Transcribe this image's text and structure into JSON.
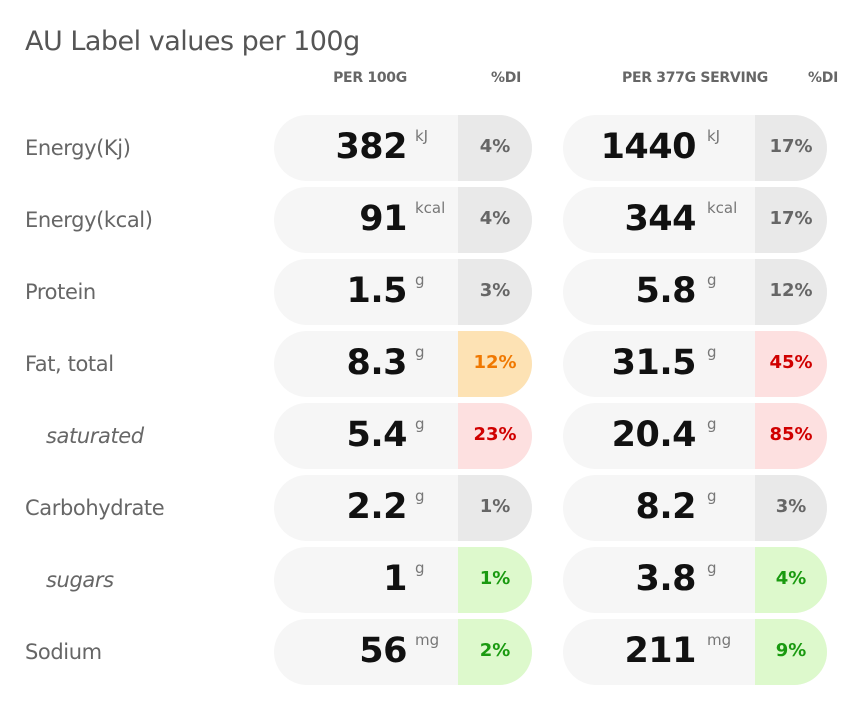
{
  "title": "AU Label values per 100g",
  "headers": {
    "per100": "PER 100G",
    "di1": "%DI",
    "perServing": "PER 377G SERVING",
    "di2": "%DI"
  },
  "colors": {
    "neutral": "#e9e9e9",
    "medium": "#f07800",
    "high": "#d00000",
    "low": "#1a9a10"
  },
  "rows": [
    {
      "label": "Energy(Kj)",
      "sub": false,
      "v1": "382",
      "u1": "kJ",
      "p1": "4%",
      "l1": "neutral",
      "v2": "1440",
      "u2": "kJ",
      "p2": "17%",
      "l2": "neutral"
    },
    {
      "label": "Energy(kcal)",
      "sub": false,
      "v1": "91",
      "u1": "kcal",
      "p1": "4%",
      "l1": "neutral",
      "v2": "344",
      "u2": "kcal",
      "p2": "17%",
      "l2": "neutral"
    },
    {
      "label": "Protein",
      "sub": false,
      "v1": "1.5",
      "u1": "g",
      "p1": "3%",
      "l1": "neutral",
      "v2": "5.8",
      "u2": "g",
      "p2": "12%",
      "l2": "neutral"
    },
    {
      "label": "Fat, total",
      "sub": false,
      "v1": "8.3",
      "u1": "g",
      "p1": "12%",
      "l1": "medium",
      "v2": "31.5",
      "u2": "g",
      "p2": "45%",
      "l2": "high"
    },
    {
      "label": "saturated",
      "sub": true,
      "v1": "5.4",
      "u1": "g",
      "p1": "23%",
      "l1": "high",
      "v2": "20.4",
      "u2": "g",
      "p2": "85%",
      "l2": "high"
    },
    {
      "label": "Carbohydrate",
      "sub": false,
      "v1": "2.2",
      "u1": "g",
      "p1": "1%",
      "l1": "neutral",
      "v2": "8.2",
      "u2": "g",
      "p2": "3%",
      "l2": "neutral"
    },
    {
      "label": "sugars",
      "sub": true,
      "v1": "1",
      "u1": "g",
      "p1": "1%",
      "l1": "low",
      "v2": "3.8",
      "u2": "g",
      "p2": "4%",
      "l2": "low"
    },
    {
      "label": "Sodium",
      "sub": false,
      "v1": "56",
      "u1": "mg",
      "p1": "2%",
      "l1": "low",
      "v2": "211",
      "u2": "mg",
      "p2": "9%",
      "l2": "low"
    }
  ]
}
